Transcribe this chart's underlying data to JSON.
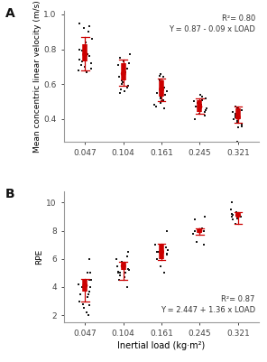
{
  "loads": [
    0.047,
    0.104,
    0.161,
    0.245,
    0.321
  ],
  "panel_A": {
    "ylabel": "Mean concentric linear velocity (m/s)",
    "ylim": [
      0.27,
      1.02
    ],
    "yticks": [
      0.4,
      0.6,
      0.8,
      1.0
    ],
    "means": [
      0.77,
      0.66,
      0.57,
      0.47,
      0.41
    ],
    "ci_upper": [
      0.83,
      0.72,
      0.62,
      0.51,
      0.46
    ],
    "ci_lower": [
      0.73,
      0.62,
      0.53,
      0.44,
      0.4
    ],
    "sd_upper": [
      0.87,
      0.74,
      0.63,
      0.52,
      0.47
    ],
    "sd_lower": [
      0.68,
      0.59,
      0.5,
      0.43,
      0.38
    ],
    "annotation": "R²= 0.80\nY = 0.87 - 0.09 x LOAD",
    "dots": [
      [
        0.95,
        0.93,
        0.92,
        0.9,
        0.86,
        0.84,
        0.82,
        0.8,
        0.79,
        0.78,
        0.77,
        0.76,
        0.75,
        0.74,
        0.73,
        0.72,
        0.71,
        0.7,
        0.69,
        0.68,
        0.67
      ],
      [
        0.77,
        0.75,
        0.73,
        0.72,
        0.71,
        0.7,
        0.69,
        0.67,
        0.65,
        0.64,
        0.63,
        0.62,
        0.61,
        0.6,
        0.59,
        0.58,
        0.57,
        0.56,
        0.55
      ],
      [
        0.66,
        0.65,
        0.64,
        0.62,
        0.6,
        0.58,
        0.57,
        0.56,
        0.55,
        0.54,
        0.53,
        0.52,
        0.51,
        0.5,
        0.49,
        0.48,
        0.47,
        0.46
      ],
      [
        0.54,
        0.53,
        0.52,
        0.51,
        0.5,
        0.49,
        0.48,
        0.47,
        0.46,
        0.45,
        0.44,
        0.43,
        0.42,
        0.4
      ],
      [
        0.47,
        0.46,
        0.45,
        0.45,
        0.44,
        0.43,
        0.42,
        0.41,
        0.4,
        0.39,
        0.38,
        0.37,
        0.36,
        0.35,
        0.27
      ]
    ]
  },
  "panel_B": {
    "ylabel": "RPE",
    "ylim": [
      1.5,
      10.8
    ],
    "yticks": [
      2,
      4,
      6,
      8,
      10
    ],
    "means": [
      4.1,
      5.5,
      6.5,
      8.0,
      9.1
    ],
    "ci_upper": [
      4.55,
      5.75,
      7.05,
      8.1,
      9.25
    ],
    "ci_lower": [
      3.65,
      5.2,
      6.0,
      7.85,
      9.0
    ],
    "sd_upper": [
      4.6,
      5.8,
      7.1,
      8.15,
      9.3
    ],
    "sd_lower": [
      3.0,
      4.5,
      5.9,
      7.7,
      8.5
    ],
    "annotation": "R²= 0.87\nY = 2.447 + 1.36 x LOAD",
    "dots": [
      [
        6.0,
        5.0,
        5.0,
        4.5,
        4.5,
        4.2,
        4.0,
        4.0,
        3.8,
        3.7,
        3.5,
        3.5,
        3.3,
        3.0,
        2.8,
        2.7,
        2.5,
        2.2,
        2.0
      ],
      [
        6.5,
        6.2,
        6.0,
        5.8,
        5.7,
        5.5,
        5.5,
        5.5,
        5.3,
        5.2,
        5.1,
        5.0,
        5.0,
        5.0,
        4.8,
        4.7,
        4.5,
        4.0
      ],
      [
        8.0,
        7.0,
        7.0,
        6.8,
        6.6,
        6.5,
        6.5,
        6.4,
        6.3,
        6.0,
        5.5,
        5.0
      ],
      [
        9.0,
        8.8,
        8.2,
        8.0,
        8.0,
        8.0,
        7.8,
        7.2,
        7.0
      ],
      [
        10.0,
        9.5,
        9.3,
        9.2,
        9.1,
        9.0,
        9.0,
        9.0,
        8.9,
        8.8,
        8.5
      ]
    ]
  },
  "xlabel": "Inertial load (kg·m²)",
  "dot_color": "#1a1a1a",
  "error_color": "#cc0000",
  "mean_color": "#cc0000",
  "background_color": "#ffffff",
  "plot_bg": "#ffffff",
  "label_A": "A",
  "label_B": "B"
}
